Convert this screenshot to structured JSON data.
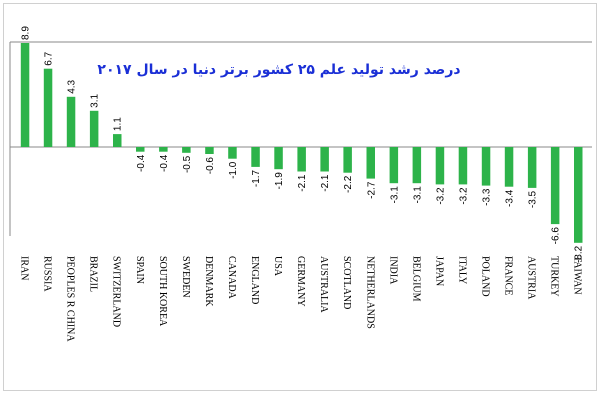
{
  "chart_data": {
    "type": "bar",
    "title": "درصد رشد تولید علم ۲۵ کشور برتر دنیا در سال ۲۰۱۷",
    "categories": [
      "IRAN",
      "RUSSIA",
      "PEOPLES R CHINA",
      "BRAZIL",
      "SWITZERLAND",
      "SPAIN",
      "SOUTH KOREA",
      "SWEDEN",
      "DENMARK",
      "CANADA",
      "ENGLAND",
      "USA",
      "GERMANY",
      "AUSTRALIA",
      "SCOTLAND",
      "NETHERLANDS",
      "INDIA",
      "BELGIUM",
      "JAPAN",
      "ITALY",
      "POLAND",
      "FRANCE",
      "AUSTRIA",
      "TURKEY",
      "TAIWAN"
    ],
    "values": [
      8.9,
      6.7,
      4.3,
      3.1,
      1.1,
      -0.4,
      -0.4,
      -0.5,
      -0.6,
      -1.0,
      -1.7,
      -1.9,
      -2.1,
      -2.1,
      -2.2,
      -2.7,
      -3.1,
      -3.1,
      -3.2,
      -3.2,
      -3.3,
      -3.4,
      -3.5,
      -6.6,
      -8.2
    ],
    "value_labels": [
      "8.9",
      "6.7",
      "4.3",
      "3.1",
      "1.1",
      "-0.4",
      "-0.4",
      "-0.5",
      "-0.6",
      "-1.0",
      "-1.7",
      "-1.9",
      "-2.1",
      "-2.1",
      "-2.2",
      "-2.7",
      "-3.1",
      "-3.1",
      "-3.2",
      "-3.2",
      "-3.3",
      "-3.4",
      "-3.5",
      "-6.6",
      "-8.2"
    ],
    "bar_color": "#2db34a",
    "title_color": "#1a2fd6",
    "grid": false,
    "legend": "none",
    "ylim": [
      -8.2,
      8.9
    ]
  }
}
